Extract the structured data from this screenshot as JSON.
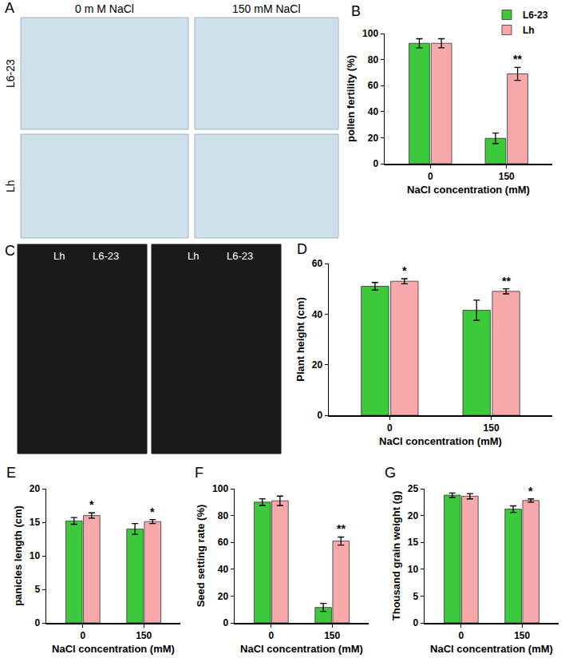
{
  "photos": [
    {
      "label": "A",
      "columns": [
        "0 m M NaCl",
        "150 mM NaCl"
      ],
      "rows": [
        "L6-23",
        "Lh"
      ]
    },
    {
      "label": "C",
      "captions": [
        [
          "Lh",
          "L6-23"
        ],
        [
          "Lh",
          "L6-23"
        ]
      ]
    }
  ],
  "chart_data": [
    {
      "type": "bar",
      "title": "B",
      "categories": [
        "0",
        "150"
      ],
      "x_label": "NaCl concentration (mM)",
      "y_label": "pollen fertility (%)",
      "ylim": [
        0,
        100
      ],
      "yticks": [
        0,
        20,
        40,
        60,
        80,
        100
      ],
      "legend": "upper right",
      "series": [
        {
          "name": "L6-23",
          "color": "#3cc93c",
          "values": [
            92.5,
            19.5
          ],
          "errors": [
            3.5,
            4
          ]
        },
        {
          "name": "Lh",
          "color": "#f7a8a8",
          "values": [
            92.5,
            69
          ],
          "errors": [
            3.5,
            5
          ]
        }
      ],
      "significance": [
        {
          "series": "Lh",
          "category": "150",
          "text": "**"
        }
      ]
    },
    {
      "type": "bar",
      "title": "D",
      "categories": [
        "0",
        "150"
      ],
      "x_label": "NaCl concentration (mM)",
      "y_label": "Plant height (cm)",
      "ylim": [
        0,
        60
      ],
      "yticks": [
        0,
        20,
        40,
        60
      ],
      "series": [
        {
          "name": "L6-23",
          "color": "#3cc93c",
          "values": [
            51,
            41.5
          ],
          "errors": [
            1.5,
            4
          ]
        },
        {
          "name": "Lh",
          "color": "#f7a8a8",
          "values": [
            53,
            49
          ],
          "errors": [
            1,
            1
          ]
        }
      ],
      "significance": [
        {
          "series": "Lh",
          "category": "0",
          "text": "*"
        },
        {
          "series": "Lh",
          "category": "150",
          "text": "**"
        }
      ]
    },
    {
      "type": "bar",
      "title": "E",
      "categories": [
        "0",
        "150"
      ],
      "x_label": "NaCl concentration (mM)",
      "y_label": "panicles length (cm)",
      "ylim": [
        0,
        20
      ],
      "yticks": [
        0,
        5,
        10,
        15,
        20
      ],
      "series": [
        {
          "name": "L6-23",
          "color": "#3cc93c",
          "values": [
            15.2,
            14.0
          ],
          "errors": [
            0.5,
            0.8
          ]
        },
        {
          "name": "Lh",
          "color": "#f7a8a8",
          "values": [
            16.0,
            15.1
          ],
          "errors": [
            0.4,
            0.3
          ]
        }
      ],
      "significance": [
        {
          "series": "Lh",
          "category": "0",
          "text": "*"
        },
        {
          "series": "Lh",
          "category": "150",
          "text": "*"
        }
      ]
    },
    {
      "type": "bar",
      "title": "F",
      "categories": [
        "0",
        "150"
      ],
      "x_label": "NaCl concentration (mM)",
      "y_label": "Seed setting rate (%)",
      "ylim": [
        0,
        100
      ],
      "yticks": [
        0,
        20,
        40,
        60,
        80,
        100
      ],
      "series": [
        {
          "name": "L6-23",
          "color": "#3cc93c",
          "values": [
            90,
            11.5
          ],
          "errors": [
            2.5,
            3
          ]
        },
        {
          "name": "Lh",
          "color": "#f7a8a8",
          "values": [
            91,
            61
          ],
          "errors": [
            3.5,
            3
          ]
        }
      ],
      "significance": [
        {
          "series": "Lh",
          "category": "150",
          "text": "**"
        }
      ]
    },
    {
      "type": "bar",
      "title": "G",
      "categories": [
        "0",
        "150"
      ],
      "x_label": "NaCl concentration (mM)",
      "y_label": "Thousand grain weight (g)",
      "ylim": [
        0,
        25
      ],
      "yticks": [
        0,
        5,
        10,
        15,
        20,
        25
      ],
      "series": [
        {
          "name": "L6-23",
          "color": "#3cc93c",
          "values": [
            23.8,
            21.2
          ],
          "errors": [
            0.4,
            0.6
          ]
        },
        {
          "name": "Lh",
          "color": "#f7a8a8",
          "values": [
            23.6,
            22.8
          ],
          "errors": [
            0.5,
            0.3
          ]
        }
      ],
      "significance": [
        {
          "series": "Lh",
          "category": "150",
          "text": "*"
        }
      ]
    }
  ]
}
